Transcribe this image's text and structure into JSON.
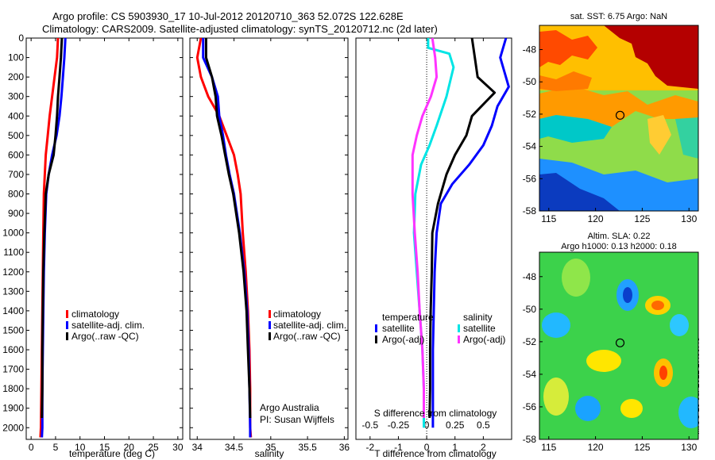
{
  "header": {
    "line1": "Argo profile: CS 5903930_17 10-Jul-2012 20120710_363 52.072S 122.628E",
    "line2": "Climatology: CARS2009. Satellite-adjusted climatology: synTS_20120712.nc (2d later)"
  },
  "stamp": "IMOS 18-Jul-2012 17:00:48",
  "colors": {
    "climatology": "#ff0000",
    "satellite": "#0000ff",
    "argo": "#000000",
    "sal_sat": "#00e5e5",
    "sal_argo": "#ff33ff"
  },
  "chart_data": [
    {
      "type": "line",
      "xlabel": "temperature (deg C)",
      "ylabel": "",
      "xlim": [
        -1,
        31
      ],
      "ylim": [
        2060,
        0
      ],
      "xticks": [
        "0",
        "5",
        "10",
        "15",
        "20",
        "25",
        "30"
      ],
      "yticks": [
        "0",
        "100",
        "200",
        "300",
        "400",
        "500",
        "600",
        "700",
        "800",
        "900",
        "1000",
        "1100",
        "1200",
        "1300",
        "1400",
        "1500",
        "1600",
        "1700",
        "1800",
        "1900",
        "2000"
      ],
      "legend": [
        "climatology",
        "satellite-adj. clim.",
        "Argo(..raw -QC)"
      ],
      "series": [
        {
          "name": "climatology",
          "color": "#ff0000",
          "points": [
            [
              5.5,
              0
            ],
            [
              5.3,
              100
            ],
            [
              4.8,
              200
            ],
            [
              4.3,
              300
            ],
            [
              3.8,
              400
            ],
            [
              3.4,
              500
            ],
            [
              3.0,
              600
            ],
            [
              2.8,
              700
            ],
            [
              2.6,
              800
            ],
            [
              2.5,
              1000
            ],
            [
              2.4,
              1200
            ],
            [
              2.3,
              1400
            ],
            [
              2.2,
              1600
            ],
            [
              2.1,
              1800
            ],
            [
              2.0,
              2000
            ],
            [
              1.9,
              2050
            ]
          ]
        },
        {
          "name": "satellite-adj. clim.",
          "color": "#0000ff",
          "points": [
            [
              7.0,
              0
            ],
            [
              6.8,
              100
            ],
            [
              6.5,
              200
            ],
            [
              6.2,
              300
            ],
            [
              5.8,
              400
            ],
            [
              5.2,
              500
            ],
            [
              4.3,
              600
            ],
            [
              3.6,
              700
            ],
            [
              3.1,
              800
            ],
            [
              2.8,
              1000
            ],
            [
              2.6,
              1200
            ],
            [
              2.5,
              1400
            ],
            [
              2.4,
              1600
            ],
            [
              2.3,
              1800
            ],
            [
              2.3,
              2000
            ],
            [
              2.2,
              2050
            ]
          ]
        },
        {
          "name": "Argo(..raw -QC)",
          "color": "#000000",
          "points": [
            [
              6.3,
              0
            ],
            [
              6.1,
              100
            ],
            [
              5.8,
              200
            ],
            [
              5.5,
              300
            ],
            [
              5.3,
              400
            ],
            [
              5.0,
              500
            ],
            [
              4.6,
              600
            ],
            [
              3.6,
              700
            ],
            [
              3.0,
              800
            ],
            [
              2.7,
              1000
            ],
            [
              2.5,
              1200
            ],
            [
              2.4,
              1400
            ],
            [
              2.3,
              1600
            ],
            [
              2.3,
              1800
            ],
            [
              2.2,
              1950
            ]
          ]
        }
      ]
    },
    {
      "type": "line",
      "xlabel": "salinity",
      "xlim": [
        33.9,
        36.05
      ],
      "ylim": [
        2060,
        0
      ],
      "xticks": [
        "34",
        "34.5",
        "35",
        "35.5",
        "36"
      ],
      "legend": [
        "climatology",
        "satellite-adj. clim.",
        "Argo(..raw -QC)"
      ],
      "annotation": [
        "Argo Australia",
        "PI: Susan Wijffels"
      ],
      "series": [
        {
          "name": "climatology",
          "color": "#ff0000",
          "points": [
            [
              34.05,
              0
            ],
            [
              34.0,
              100
            ],
            [
              34.05,
              200
            ],
            [
              34.15,
              300
            ],
            [
              34.3,
              400
            ],
            [
              34.4,
              500
            ],
            [
              34.5,
              600
            ],
            [
              34.55,
              700
            ],
            [
              34.59,
              800
            ],
            [
              34.62,
              1000
            ],
            [
              34.66,
              1200
            ],
            [
              34.69,
              1400
            ],
            [
              34.71,
              1600
            ],
            [
              34.72,
              1800
            ],
            [
              34.72,
              2000
            ],
            [
              34.73,
              2050
            ]
          ]
        },
        {
          "name": "satellite-adj. clim.",
          "color": "#0000ff",
          "points": [
            [
              34.08,
              0
            ],
            [
              34.08,
              100
            ],
            [
              34.2,
              200
            ],
            [
              34.28,
              300
            ],
            [
              34.3,
              400
            ],
            [
              34.35,
              500
            ],
            [
              34.39,
              600
            ],
            [
              34.44,
              700
            ],
            [
              34.5,
              800
            ],
            [
              34.58,
              1000
            ],
            [
              34.64,
              1200
            ],
            [
              34.68,
              1400
            ],
            [
              34.7,
              1600
            ],
            [
              34.71,
              1800
            ],
            [
              34.72,
              2000
            ],
            [
              34.72,
              2050
            ]
          ]
        },
        {
          "name": "Argo(..raw -QC)",
          "color": "#000000",
          "points": [
            [
              34.12,
              0
            ],
            [
              34.12,
              100
            ],
            [
              34.2,
              200
            ],
            [
              34.25,
              300
            ],
            [
              34.27,
              400
            ],
            [
              34.33,
              500
            ],
            [
              34.38,
              600
            ],
            [
              34.43,
              700
            ],
            [
              34.49,
              800
            ],
            [
              34.57,
              1000
            ],
            [
              34.63,
              1200
            ],
            [
              34.67,
              1400
            ],
            [
              34.69,
              1600
            ],
            [
              34.71,
              1800
            ],
            [
              34.72,
              1950
            ]
          ]
        }
      ]
    },
    {
      "type": "line",
      "xlabel": "T difference from climatology",
      "xlabel_top": "S difference from climatology",
      "xlim": [
        -2.5,
        3.0
      ],
      "ylim": [
        2060,
        0
      ],
      "xticks": [
        "-2",
        "-1",
        "0",
        "1",
        "2"
      ],
      "xticks_top": [
        "-0.5",
        "-0.25",
        "0",
        "0.25",
        "0.5"
      ],
      "legend_temperature": {
        "title": "temperature",
        "items": [
          "satellite",
          "Argo(-adj)"
        ]
      },
      "legend_salinity": {
        "title": "salinity",
        "items": [
          "satellite",
          "Argo(-adj)"
        ]
      },
      "series": [
        {
          "name": "satellite",
          "group": "temperature",
          "color": "#0000ff",
          "points": [
            [
              2.8,
              0
            ],
            [
              2.6,
              100
            ],
            [
              2.9,
              250
            ],
            [
              2.5,
              350
            ],
            [
              2.3,
              450
            ],
            [
              2.0,
              550
            ],
            [
              1.5,
              650
            ],
            [
              0.9,
              750
            ],
            [
              0.5,
              850
            ],
            [
              0.35,
              1000
            ],
            [
              0.28,
              1200
            ],
            [
              0.25,
              1400
            ],
            [
              0.22,
              1600
            ],
            [
              0.22,
              1800
            ],
            [
              0.22,
              2000
            ]
          ]
        },
        {
          "name": "Argo(-adj)",
          "group": "temperature",
          "color": "#000000",
          "points": [
            [
              1.6,
              0
            ],
            [
              1.7,
              100
            ],
            [
              1.8,
              200
            ],
            [
              2.4,
              280
            ],
            [
              1.6,
              400
            ],
            [
              1.4,
              500
            ],
            [
              1.0,
              600
            ],
            [
              0.7,
              700
            ],
            [
              0.4,
              850
            ],
            [
              0.2,
              1000
            ],
            [
              0.18,
              1200
            ],
            [
              0.14,
              1400
            ],
            [
              0.12,
              1600
            ],
            [
              0.12,
              1800
            ],
            [
              0.1,
              1950
            ]
          ]
        },
        {
          "name": "satellite",
          "group": "salinity",
          "color": "#00e5e5",
          "points": [
            [
              0.05,
              0
            ],
            [
              0.05,
              50
            ],
            [
              0.8,
              80
            ],
            [
              0.95,
              150
            ],
            [
              0.7,
              300
            ],
            [
              0.35,
              450
            ],
            [
              0.1,
              550
            ],
            [
              -0.2,
              650
            ],
            [
              -0.4,
              800
            ],
            [
              -0.45,
              1000
            ],
            [
              -0.35,
              1200
            ],
            [
              -0.25,
              1400
            ],
            [
              -0.15,
              1600
            ],
            [
              -0.1,
              1800
            ],
            [
              -0.1,
              2000
            ]
          ]
        },
        {
          "name": "Argo(-adj)",
          "group": "salinity",
          "color": "#ff33ff",
          "points": [
            [
              0.2,
              0
            ],
            [
              0.3,
              100
            ],
            [
              0.35,
              200
            ],
            [
              0.15,
              300
            ],
            [
              -0.15,
              400
            ],
            [
              -0.35,
              500
            ],
            [
              -0.5,
              600
            ],
            [
              -0.5,
              800
            ],
            [
              -0.42,
              1000
            ],
            [
              -0.32,
              1200
            ],
            [
              -0.25,
              1400
            ],
            [
              -0.15,
              1600
            ],
            [
              -0.1,
              1800
            ],
            [
              -0.1,
              1950
            ]
          ]
        }
      ]
    },
    {
      "type": "heatmap",
      "title": "sat. SST: 6.75  Argo: NaN",
      "xlim": [
        114,
        131
      ],
      "ylim": [
        -58,
        -46.5
      ],
      "xticks": [
        "115",
        "120",
        "125",
        "130"
      ],
      "yticks": [
        "-48",
        "-50",
        "-52",
        "-54",
        "-56",
        "-58"
      ],
      "marker": [
        122.63,
        -52.07
      ]
    },
    {
      "type": "heatmap",
      "title": "Altim. SLA: 0.22",
      "subtitle": "Argo h1000: 0.13 h2000: 0.18",
      "xlim": [
        114,
        131
      ],
      "ylim": [
        -58,
        -46.5
      ],
      "xticks": [
        "115",
        "120",
        "125",
        "130"
      ],
      "yticks": [
        "-48",
        "-50",
        "-52",
        "-54",
        "-56",
        "-58"
      ],
      "marker": [
        122.63,
        -52.07
      ]
    }
  ]
}
